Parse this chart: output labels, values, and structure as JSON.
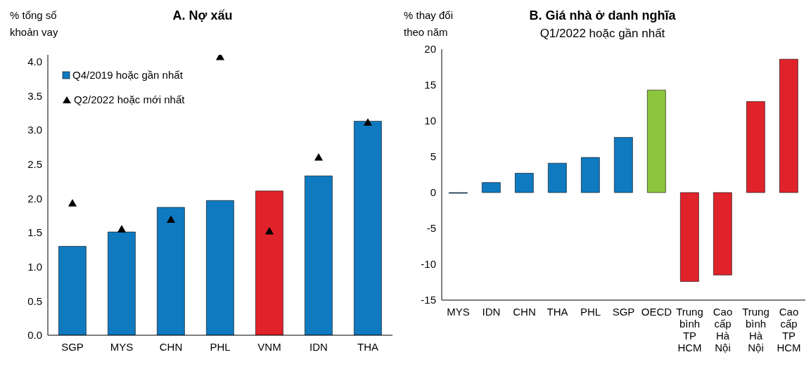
{
  "chart_data": [
    {
      "type": "bar",
      "title": "A. Nợ xấu",
      "ylabel": "% tổng số khoản vay",
      "categories": [
        "SGP",
        "MYS",
        "CHN",
        "PHL",
        "VNM",
        "IDN",
        "THA"
      ],
      "series": [
        {
          "name": "Q4/2019 hoặc gần nhất",
          "color": "#0f7ac0",
          "colors": [
            "#0f7ac0",
            "#0f7ac0",
            "#0f7ac0",
            "#0f7ac0",
            "#e0232b",
            "#0f7ac0",
            "#0f7ac0"
          ],
          "values": [
            1.3,
            1.51,
            1.87,
            1.97,
            2.11,
            2.33,
            3.13
          ]
        },
        {
          "name": "Q2/2022 hoặc mới nhất",
          "type": "scatter",
          "marker": "triangle",
          "color": "#000000",
          "values": [
            1.92,
            1.54,
            1.68,
            4.06,
            1.51,
            2.59,
            3.1
          ]
        }
      ],
      "ylim": [
        0,
        4.1
      ],
      "yticks": [
        {
          "value": 0,
          "label": "0.0"
        },
        {
          "value": 0.5,
          "label": "0.5"
        },
        {
          "value": 1,
          "label": "1.0"
        },
        {
          "value": 1.5,
          "label": "1.5"
        },
        {
          "value": 2,
          "label": "2.0"
        },
        {
          "value": 2.5,
          "label": "2.5"
        },
        {
          "value": 3,
          "label": "3.0"
        },
        {
          "value": 3.5,
          "label": "3.5"
        },
        {
          "value": 4,
          "label": "4.0"
        }
      ],
      "legend": "top left"
    },
    {
      "type": "bar",
      "title": "B. Giá nhà ở danh nghĩa",
      "subtitle": "Q1/2022 hoặc gần nhất",
      "ylabel": "% thay đổi theo năm",
      "categories": [
        "MYS",
        "IDN",
        "CHN",
        "THA",
        "PHL",
        "SGP",
        "OECD",
        "Trung bình TP HCM",
        "Cao cấp Hà Nội",
        "Trung bình Hà Nội",
        "Cao cấp TP HCM"
      ],
      "values": [
        -0.1,
        1.4,
        2.7,
        4.1,
        4.9,
        7.7,
        14.3,
        -12.4,
        -11.5,
        12.7,
        18.6
      ],
      "colors": [
        "#0f7ac0",
        "#0f7ac0",
        "#0f7ac0",
        "#0f7ac0",
        "#0f7ac0",
        "#0f7ac0",
        "#8cc63f",
        "#e0232b",
        "#e0232b",
        "#e0232b",
        "#e0232b"
      ],
      "ylim": [
        -15,
        20
      ],
      "yticks": [
        -15,
        -10,
        -5,
        0,
        5,
        10,
        15,
        20
      ]
    }
  ]
}
